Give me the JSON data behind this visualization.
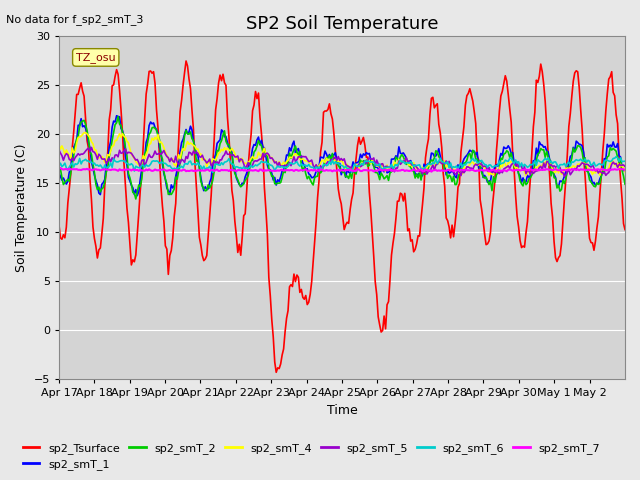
{
  "title": "SP2 Soil Temperature",
  "subtitle": "No data for f_sp2_smT_3",
  "ylabel": "Soil Temperature (C)",
  "xlabel": "Time",
  "tz_label": "TZ_osu",
  "ylim": [
    -5,
    30
  ],
  "series": {
    "sp2_Tsurface": {
      "color": "#ff0000",
      "lw": 1.2
    },
    "sp2_smT_1": {
      "color": "#0000ff",
      "lw": 1.2
    },
    "sp2_smT_2": {
      "color": "#00cc00",
      "lw": 1.2
    },
    "sp2_smT_4": {
      "color": "#ffff00",
      "lw": 1.2
    },
    "sp2_smT_5": {
      "color": "#9900cc",
      "lw": 1.2
    },
    "sp2_smT_6": {
      "color": "#00cccc",
      "lw": 1.2
    },
    "sp2_smT_7": {
      "color": "#ff00ff",
      "lw": 1.5
    }
  },
  "x_tick_labels": [
    "Apr 17",
    "Apr 18",
    "Apr 19",
    "Apr 20",
    "Apr 21",
    "Apr 22",
    "Apr 23",
    "Apr 24",
    "Apr 25",
    "Apr 26",
    "Apr 27",
    "Apr 28",
    "Apr 29",
    "Apr 30",
    "May 1",
    "May 2"
  ],
  "yticks": [
    -5,
    0,
    5,
    10,
    15,
    20,
    25,
    30
  ]
}
